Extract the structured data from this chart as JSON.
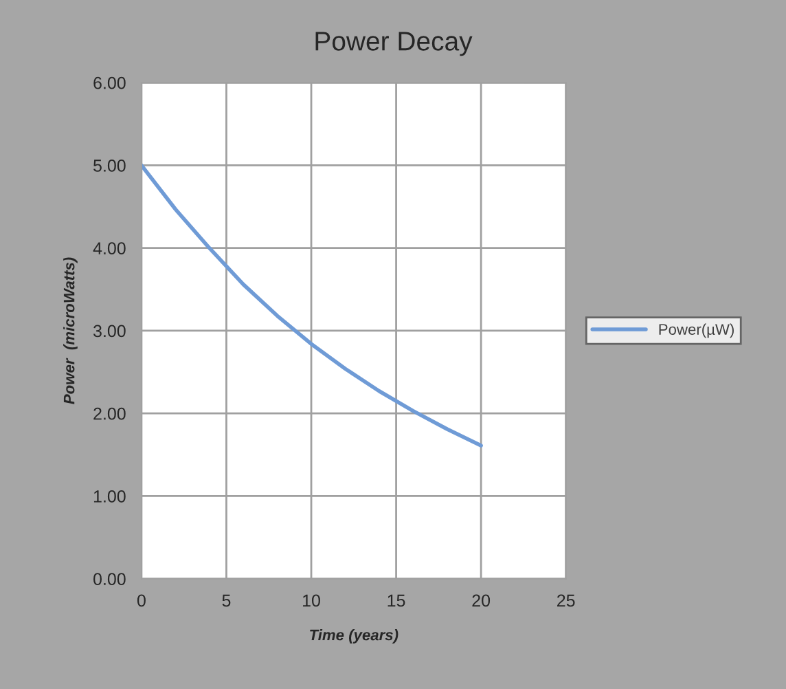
{
  "chart_data": {
    "type": "line",
    "title": "Power Decay",
    "xlabel": "Time (years)",
    "ylabel": "Power  (microWatts)",
    "x": [
      0,
      2,
      4,
      6,
      8,
      10,
      12,
      14,
      16,
      18,
      20
    ],
    "series": [
      {
        "name": "Power(µW)",
        "color": "#6f9bd6",
        "values": [
          5.0,
          4.47,
          4.0,
          3.56,
          3.18,
          2.84,
          2.54,
          2.27,
          2.03,
          1.81,
          1.61
        ]
      }
    ],
    "xlim": [
      0,
      25
    ],
    "xticks": [
      0,
      5,
      10,
      15,
      20,
      25
    ],
    "ylim": [
      0,
      6
    ],
    "yticks": [
      {
        "value": 0,
        "label": "0.00"
      },
      {
        "value": 1,
        "label": "1.00"
      },
      {
        "value": 2,
        "label": "2.00"
      },
      {
        "value": 3,
        "label": "3.00"
      },
      {
        "value": 4,
        "label": "4.00"
      },
      {
        "value": 5,
        "label": "5.00"
      },
      {
        "value": 6,
        "label": "6.00"
      }
    ],
    "grid": true,
    "legend": "right",
    "marker": "none",
    "line_style": "solid"
  }
}
